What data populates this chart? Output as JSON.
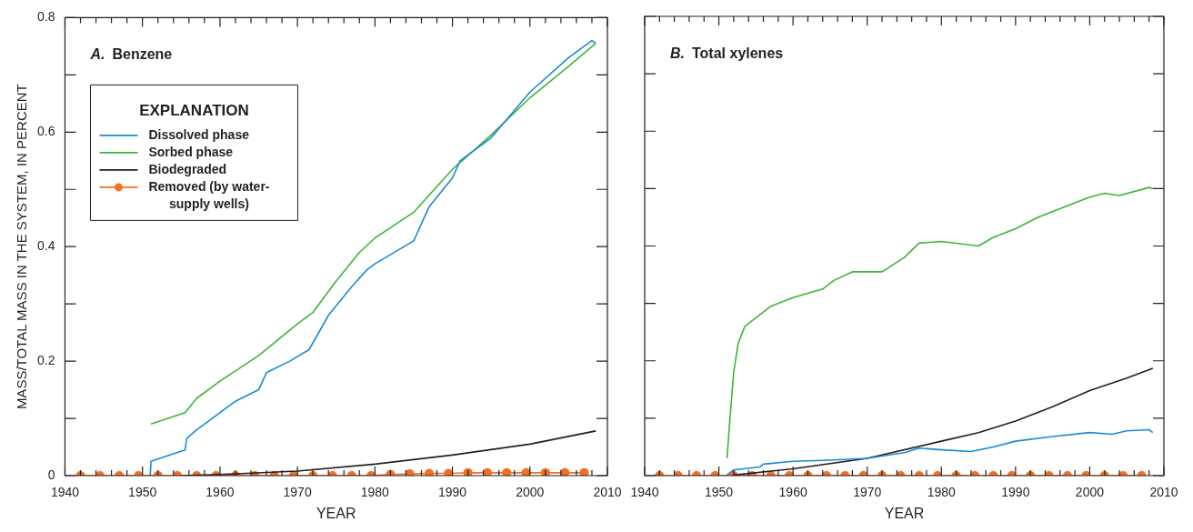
{
  "chart_data": [
    {
      "type": "line",
      "title": "A. Benzene",
      "xlabel": "YEAR",
      "ylabel": "MASS/TOTAL MASS IN THE SYSTEM, IN PERCENT",
      "legend": "top left",
      "legend_title": "EXPLANATION",
      "xlim": [
        1940,
        2010
      ],
      "xticks": [
        1940,
        {
          "value": 1942,
          "label": null
        },
        {
          "value": 1944,
          "label": null
        },
        {
          "value": 1946,
          "label": null
        },
        {
          "value": 1948,
          "label": null
        },
        1950,
        {
          "value": 1952,
          "label": null
        },
        {
          "value": 1954,
          "label": null
        },
        {
          "value": 1956,
          "label": null
        },
        {
          "value": 1958,
          "label": null
        },
        1960,
        {
          "value": 1962,
          "label": null
        },
        {
          "value": 1964,
          "label": null
        },
        {
          "value": 1966,
          "label": null
        },
        {
          "value": 1968,
          "label": null
        },
        1970,
        {
          "value": 1972,
          "label": null
        },
        {
          "value": 1974,
          "label": null
        },
        {
          "value": 1976,
          "label": null
        },
        {
          "value": 1978,
          "label": null
        },
        1980,
        {
          "value": 1982,
          "label": null
        },
        {
          "value": 1984,
          "label": null
        },
        {
          "value": 1986,
          "label": null
        },
        {
          "value": 1988,
          "label": null
        },
        1990,
        {
          "value": 1992,
          "label": null
        },
        {
          "value": 1994,
          "label": null
        },
        {
          "value": 1996,
          "label": null
        },
        {
          "value": 1998,
          "label": null
        },
        2000,
        {
          "value": 2002,
          "label": null
        },
        {
          "value": 2004,
          "label": null
        },
        {
          "value": 2006,
          "label": null
        },
        {
          "value": 2008,
          "label": null
        },
        2010
      ],
      "ylim": [
        0,
        0.8
      ],
      "yticks": [
        0,
        {
          "value": 0.1,
          "label": null
        },
        0.2,
        {
          "value": 0.3,
          "label": null
        },
        0.4,
        {
          "value": 0.5,
          "label": null
        },
        0.6,
        {
          "value": 0.7,
          "label": null
        },
        0.8
      ],
      "series": [
        {
          "name": "Dissolved phase",
          "color": "#1a8ad4",
          "marker": "none",
          "x": [
            1951,
            1951.1,
            1955.5,
            1955.7,
            1957,
            1959,
            1962,
            1965,
            1966,
            1969,
            1971.5,
            1974,
            1977,
            1979,
            1980,
            1985,
            1987,
            1990,
            1991,
            1995,
            2000,
            2005,
            2008,
            2008.5
          ],
          "values": [
            0,
            0.025,
            0.045,
            0.065,
            0.08,
            0.1,
            0.13,
            0.15,
            0.18,
            0.2,
            0.22,
            0.28,
            0.33,
            0.36,
            0.37,
            0.41,
            0.47,
            0.52,
            0.55,
            0.59,
            0.67,
            0.73,
            0.76,
            0.755
          ]
        },
        {
          "name": "Sorbed phase",
          "color": "#3cb43c",
          "marker": "none",
          "x": [
            1951.1,
            1955.5,
            1957,
            1960,
            1965,
            1970,
            1972,
            1975,
            1978,
            1980,
            1985,
            1987,
            1990,
            1995,
            2000,
            2005,
            2008.5
          ],
          "values": [
            0.09,
            0.11,
            0.135,
            0.165,
            0.21,
            0.265,
            0.285,
            0.34,
            0.39,
            0.415,
            0.46,
            0.49,
            0.535,
            0.595,
            0.66,
            0.715,
            0.755
          ]
        },
        {
          "name": "Biodegraded",
          "color": "#231f20",
          "marker": "none",
          "x": [
            1955,
            1960,
            1970,
            1980,
            1990,
            2000,
            2008.5
          ],
          "values": [
            0,
            0.002,
            0.008,
            0.02,
            0.036,
            0.055,
            0.078
          ]
        },
        {
          "name": "Removed (by water-supply wells)",
          "color": "#f36f21",
          "marker": "circle",
          "x": [
            1942,
            1944.5,
            1947,
            1949.5,
            1952,
            1954.5,
            1957,
            1959.5,
            1962,
            1964.5,
            1967,
            1969.5,
            1972,
            1974.5,
            1977,
            1979.5,
            1982,
            1984.5,
            1987,
            1989.5,
            1992,
            1994.5,
            1997,
            1999.5,
            2002,
            2004.5,
            2007
          ],
          "values": [
            0,
            0,
            0,
            0,
            0,
            0,
            0,
            0,
            0,
            0,
            0,
            0,
            0,
            0,
            0,
            0,
            0.002,
            0.003,
            0.004,
            0.004,
            0.005,
            0.005,
            0.005,
            0.005,
            0.005,
            0.005,
            0.005
          ]
        }
      ]
    },
    {
      "type": "line",
      "title": "B. Total xylenes",
      "xlabel": "YEAR",
      "tick_labels": "x",
      "xlim": [
        1940,
        2010
      ],
      "xticks": [
        1940,
        {
          "value": 1942,
          "label": null
        },
        {
          "value": 1944,
          "label": null
        },
        {
          "value": 1946,
          "label": null
        },
        {
          "value": 1948,
          "label": null
        },
        1950,
        {
          "value": 1952,
          "label": null
        },
        {
          "value": 1954,
          "label": null
        },
        {
          "value": 1956,
          "label": null
        },
        {
          "value": 1958,
          "label": null
        },
        1960,
        {
          "value": 1962,
          "label": null
        },
        {
          "value": 1964,
          "label": null
        },
        {
          "value": 1966,
          "label": null
        },
        {
          "value": 1968,
          "label": null
        },
        1970,
        {
          "value": 1972,
          "label": null
        },
        {
          "value": 1974,
          "label": null
        },
        {
          "value": 1976,
          "label": null
        },
        {
          "value": 1978,
          "label": null
        },
        1980,
        {
          "value": 1982,
          "label": null
        },
        {
          "value": 1984,
          "label": null
        },
        {
          "value": 1986,
          "label": null
        },
        {
          "value": 1988,
          "label": null
        },
        1990,
        {
          "value": 1992,
          "label": null
        },
        {
          "value": 1994,
          "label": null
        },
        {
          "value": 1996,
          "label": null
        },
        {
          "value": 1998,
          "label": null
        },
        2000,
        {
          "value": 2002,
          "label": null
        },
        {
          "value": 2004,
          "label": null
        },
        {
          "value": 2006,
          "label": null
        },
        {
          "value": 2008,
          "label": null
        },
        2010
      ],
      "ylim": [
        0,
        0.8
      ],
      "yticks": [
        0,
        {
          "value": 0.1,
          "label": null
        },
        0.2,
        {
          "value": 0.3,
          "label": null
        },
        0.4,
        {
          "value": 0.5,
          "label": null
        },
        0.6,
        {
          "value": 0.7,
          "label": null
        },
        0.8
      ],
      "series": [
        {
          "color": "#1a8ad4",
          "marker": "none",
          "x": [
            1951,
            1952,
            1955.5,
            1956,
            1960,
            1965,
            1970,
            1975,
            1977,
            1980,
            1984,
            1987,
            1990,
            1995,
            2000,
            2003,
            2005,
            2008,
            2008.5
          ],
          "values": [
            0,
            0.01,
            0.015,
            0.02,
            0.025,
            0.027,
            0.03,
            0.04,
            0.048,
            0.045,
            0.042,
            0.05,
            0.06,
            0.068,
            0.075,
            0.072,
            0.078,
            0.08,
            0.075
          ]
        },
        {
          "color": "#3cb43c",
          "marker": "none",
          "x": [
            1951.1,
            1951.5,
            1952,
            1952.6,
            1953.5,
            1955,
            1957,
            1960,
            1964,
            1965.5,
            1968,
            1972,
            1975,
            1977,
            1980,
            1985,
            1987,
            1990,
            1993,
            1997,
            2000,
            2002,
            2004,
            2008,
            2008.5
          ],
          "values": [
            0.03,
            0.1,
            0.18,
            0.23,
            0.26,
            0.275,
            0.295,
            0.31,
            0.325,
            0.34,
            0.355,
            0.355,
            0.38,
            0.405,
            0.408,
            0.4,
            0.415,
            0.43,
            0.45,
            0.47,
            0.485,
            0.492,
            0.488,
            0.502,
            0.5
          ]
        },
        {
          "color": "#231f20",
          "marker": "none",
          "x": [
            1952,
            1960,
            1970,
            1980,
            1985,
            1990,
            1995,
            2000,
            2005,
            2008.5
          ],
          "values": [
            0.001,
            0.012,
            0.03,
            0.06,
            0.075,
            0.095,
            0.12,
            0.148,
            0.17,
            0.187
          ]
        },
        {
          "color": "#f36f21",
          "marker": "circle",
          "x": [
            1942,
            1944.5,
            1947,
            1949.5,
            1952,
            1954.5,
            1957,
            1959.5,
            1962,
            1964.5,
            1967,
            1969.5,
            1972,
            1974.5,
            1977,
            1979.5,
            1982,
            1984.5,
            1987,
            1989.5,
            1992,
            1994.5,
            1997,
            1999.5,
            2002,
            2004.5,
            2007
          ],
          "values": [
            0,
            0,
            0,
            0,
            0,
            0,
            0,
            0,
            0,
            0,
            0,
            0,
            0,
            0,
            0,
            0,
            0,
            0,
            0,
            0,
            0,
            0,
            0,
            0,
            0,
            0,
            0
          ]
        }
      ]
    }
  ]
}
